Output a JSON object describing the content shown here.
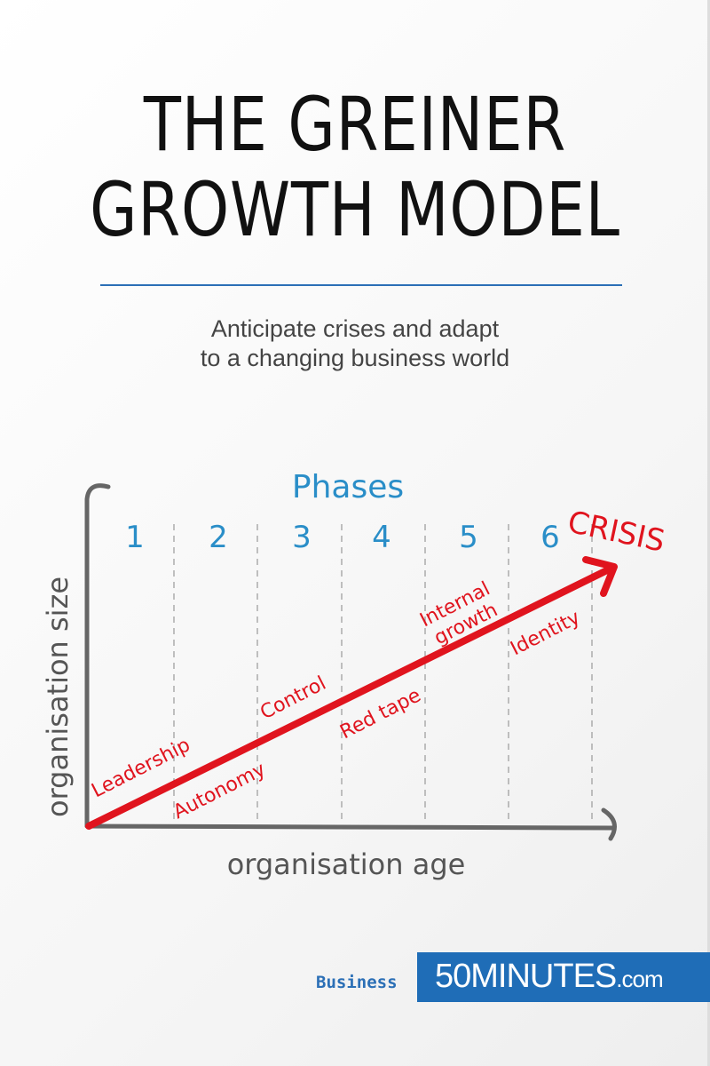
{
  "cover": {
    "title_line1": "THE GREINER",
    "title_line2": "GROWTH MODEL",
    "subtitle_line1": "Anticipate crises and adapt",
    "subtitle_line2": "to a changing business world"
  },
  "diagram": {
    "phases_label": "Phases",
    "phases": [
      "1",
      "2",
      "3",
      "4",
      "5",
      "6"
    ],
    "crisis_label": "CRISIS",
    "y_axis_label": "organisation size",
    "x_axis_label": "organisation age",
    "labels": [
      "Leadership",
      "Autonomy",
      "Control",
      "Red tape",
      "Internal",
      "growth",
      "Identity"
    ],
    "colors": {
      "phase": "#2a8ec8",
      "crisis": "#e0141e",
      "axis": "#666666"
    }
  },
  "footer": {
    "category": "Business",
    "brand_main": "50MINUTES",
    "brand_suffix": ".com",
    "brand_color": "#1f6db7"
  }
}
